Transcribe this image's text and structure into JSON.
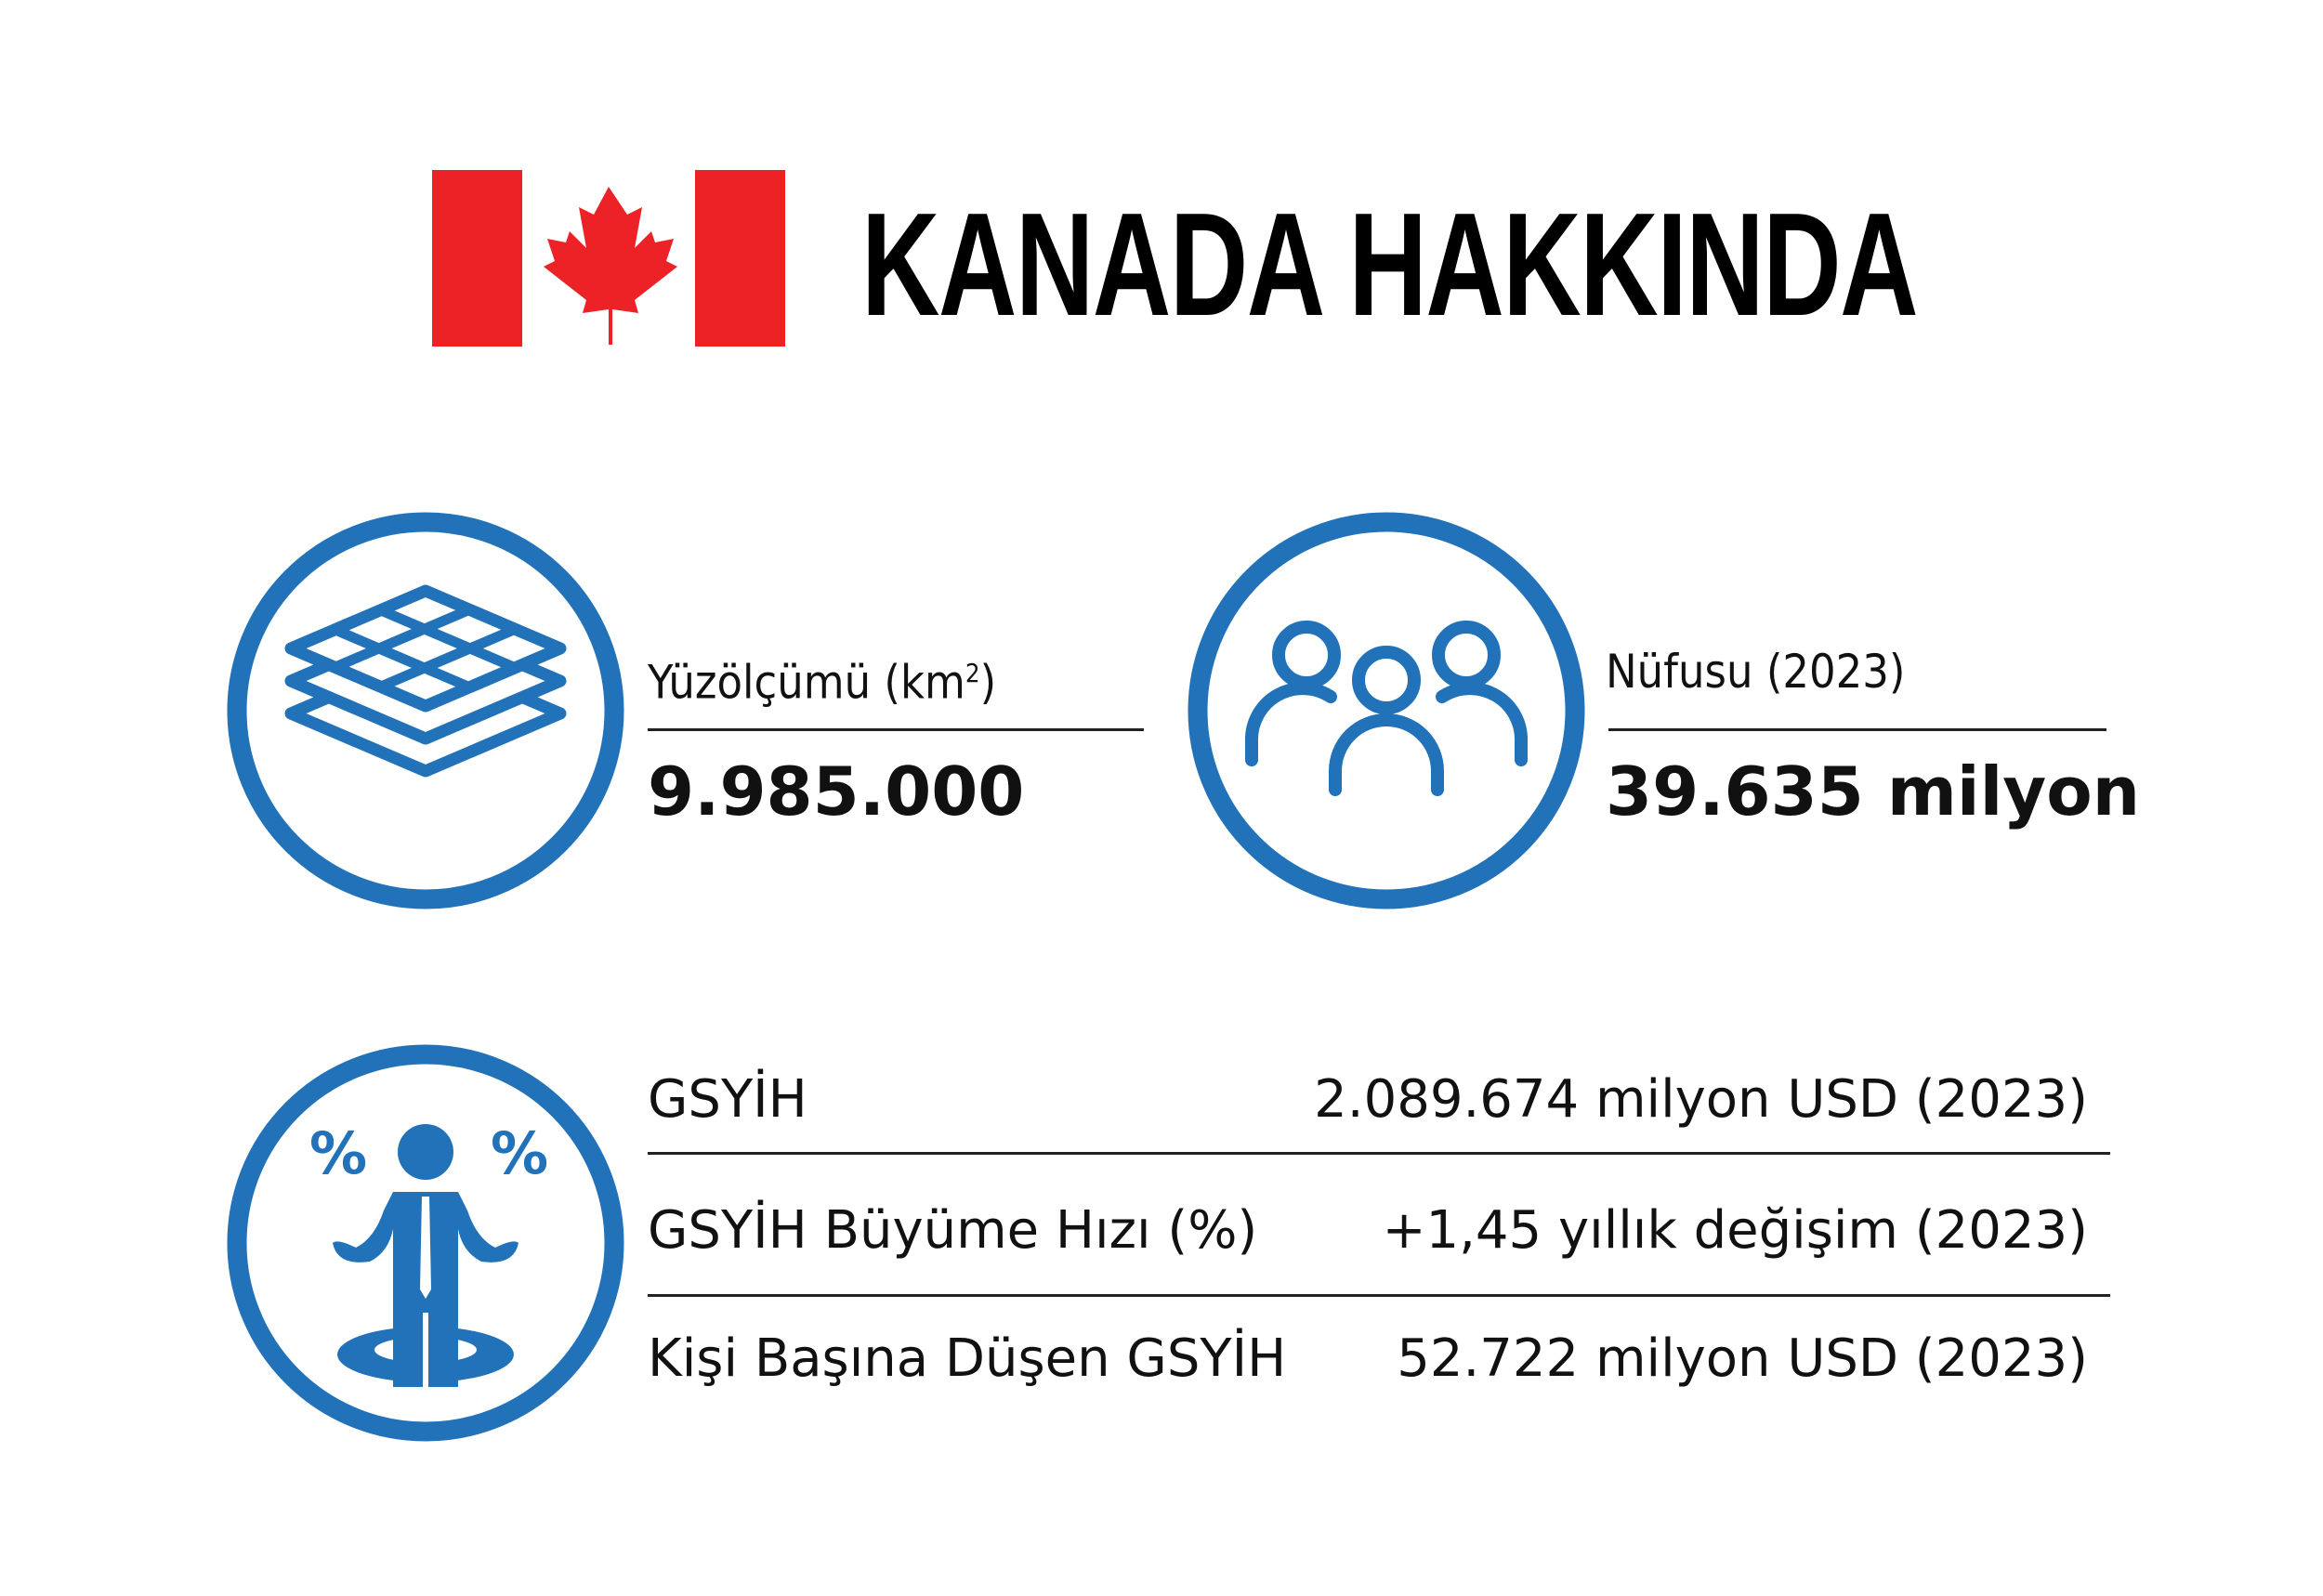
{
  "title": "KANADA HAKKINDA",
  "colors": {
    "accent_blue": "#2272b9",
    "flag_red": "#ec2227",
    "text": "#111111"
  },
  "icons": {
    "flag": "canada-flag-icon",
    "area": "layers-grid-icon",
    "population": "people-group-icon",
    "economy": "businessman-percent-icon"
  },
  "area": {
    "label": "Yüzölçümü (km",
    "label_sup": "2",
    "label_close": ")",
    "value": "9.985.000"
  },
  "population": {
    "label": "Nüfusu (2023)",
    "value": "39.635 milyon"
  },
  "economy": {
    "rows": [
      {
        "label": "GSYİH",
        "value": "2.089.674 milyon USD (2023)"
      },
      {
        "label": "GSYİH Büyüme Hızı (%)",
        "value": "+1,45 yıllık değişim (2023)"
      },
      {
        "label": "Kişi Başına Düşen GSYİH",
        "value": "52.722 milyon USD (2023)"
      }
    ],
    "percent_symbol": "%"
  }
}
